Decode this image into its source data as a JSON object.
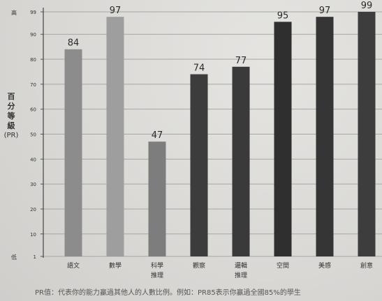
{
  "chart_data": {
    "type": "bar",
    "title": "",
    "xlabel": "",
    "ylabel": "百分等級",
    "ylabel_sub": "(PR)",
    "ylim": [
      1,
      99
    ],
    "y_ticks": [
      1,
      10,
      20,
      30,
      40,
      50,
      60,
      70,
      80,
      90,
      99
    ],
    "y_top_label": "高",
    "y_bottom_label": "低",
    "grid": true,
    "categories": [
      [
        "語文"
      ],
      [
        "數學"
      ],
      [
        "科學",
        "推理"
      ],
      [
        "觀察"
      ],
      [
        "邏輯",
        "推理"
      ],
      [
        "空間"
      ],
      [
        "美感"
      ],
      [
        "創意"
      ]
    ],
    "values": [
      84,
      97,
      47,
      74,
      77,
      95,
      97,
      99
    ],
    "bar_colors": [
      "#8c8c8c",
      "#9e9e9e",
      "#7d7d7d",
      "#3c3c3c",
      "#3a3a3a",
      "#2f2f2f",
      "#353535",
      "#3d3d3d"
    ],
    "footnote": "PR值：代表你的能力贏過其他人的人數比例。例如：PR85表示你贏過全國85%的學生"
  }
}
